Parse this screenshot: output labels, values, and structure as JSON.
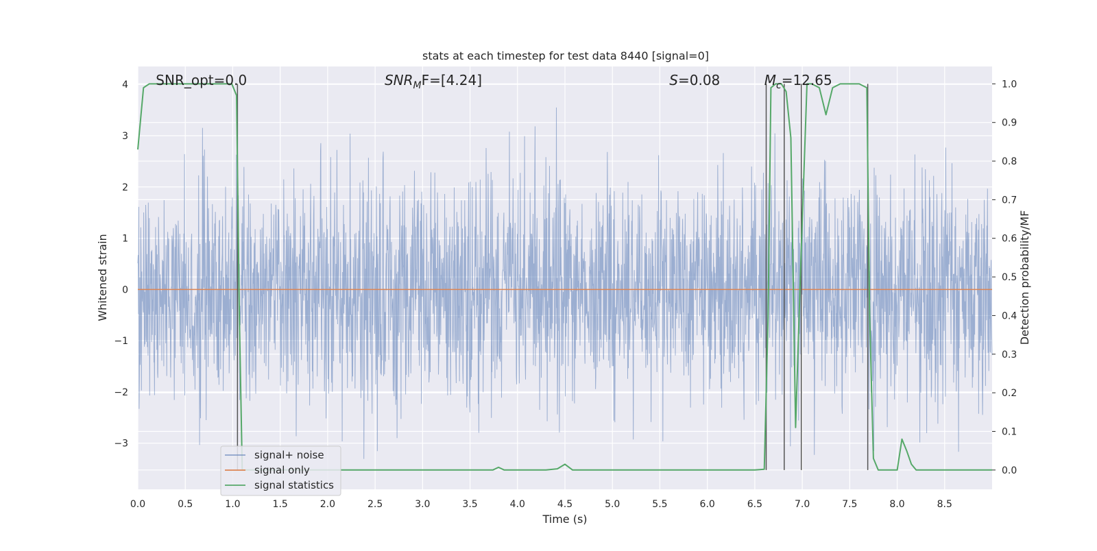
{
  "chart_data": {
    "type": "line",
    "title": "stats at each timestep for test data 8440 [signal=0]",
    "xlabel": "Time (s)",
    "ylabel_left": "Whitened strain",
    "ylabel_right": "Detection probability/MF",
    "xlim": [
      0,
      9.0
    ],
    "ylim_left": [
      -3.9,
      4.35
    ],
    "ylim_right": [
      -0.05,
      1.045
    ],
    "grid": true,
    "legend_position": "lower-left",
    "x_ticks": [
      "0.0",
      "0.5",
      "1.0",
      "1.5",
      "2.0",
      "2.5",
      "3.0",
      "3.5",
      "4.0",
      "4.5",
      "5.0",
      "5.5",
      "6.0",
      "6.5",
      "7.0",
      "7.5",
      "8.0",
      "8.5"
    ],
    "x_tick_values": [
      0,
      0.5,
      1.0,
      1.5,
      2.0,
      2.5,
      3.0,
      3.5,
      4.0,
      4.5,
      5.0,
      5.5,
      6.0,
      6.5,
      7.0,
      7.5,
      8.0,
      8.5
    ],
    "y_left_ticks": [
      "4",
      "3",
      "2",
      "1",
      "0",
      "−1",
      "−2",
      "−3"
    ],
    "y_left_tick_values": [
      4,
      3,
      2,
      1,
      0,
      -1,
      -2,
      -3
    ],
    "y_right_ticks": [
      "1.0",
      "0.9",
      "0.8",
      "0.7",
      "0.6",
      "0.5",
      "0.4",
      "0.3",
      "0.2",
      "0.1",
      "0.0"
    ],
    "y_right_tick_values": [
      1.0,
      0.9,
      0.8,
      0.7,
      0.6,
      0.5,
      0.4,
      0.3,
      0.2,
      0.1,
      0.0
    ],
    "annotations": [
      {
        "prefix": "SNR_opt",
        "sub": "",
        "suffix": "=0.0",
        "italic": false,
        "x": 0.19
      },
      {
        "prefix": "SNR",
        "sub": "M",
        "suffix": "F=[4.24]",
        "italic": true,
        "x": 2.6
      },
      {
        "prefix": "S",
        "sub": "",
        "suffix": "=0.08",
        "italic": true,
        "x": 5.6
      },
      {
        "prefix": "M",
        "sub": "c",
        "suffix": "=12.65",
        "italic": true,
        "x": 6.6
      }
    ],
    "vertical_lines_x": [
      1.05,
      6.62,
      6.81,
      6.99,
      7.69
    ],
    "series": [
      {
        "name": "signal+ noise",
        "color": "#4c72b0",
        "axis": "left",
        "style": "noise band",
        "amplitude_range": [
          -3.6,
          4.0
        ]
      },
      {
        "name": "signal only",
        "color": "#dd8452",
        "axis": "left",
        "x": [
          0,
          9.0
        ],
        "values": [
          0,
          0
        ]
      },
      {
        "name": "signal statistics",
        "color": "#55a868",
        "axis": "right",
        "x": [
          0,
          0.06,
          0.12,
          0.5,
          0.99,
          1.04,
          1.07,
          1.1,
          1.5,
          2.0,
          2.5,
          3.0,
          3.5,
          3.74,
          3.8,
          3.86,
          4.0,
          4.3,
          4.42,
          4.5,
          4.58,
          4.7,
          5.0,
          5.5,
          6.0,
          6.5,
          6.6,
          6.64,
          6.67,
          6.72,
          6.78,
          6.83,
          6.88,
          6.93,
          6.98,
          7.05,
          7.1,
          7.18,
          7.25,
          7.32,
          7.4,
          7.5,
          7.6,
          7.68,
          7.71,
          7.75,
          7.8,
          7.9,
          8.0,
          8.05,
          8.1,
          8.15,
          8.2,
          8.5,
          9.0
        ],
        "values": [
          0.83,
          0.99,
          1.0,
          1.0,
          1.0,
          0.97,
          0.4,
          0.0,
          0.0,
          0.0,
          0.0,
          0.0,
          0.0,
          0.0,
          0.007,
          0.0,
          0.0,
          0.0,
          0.003,
          0.015,
          0.0,
          0.0,
          0.0,
          0.0,
          0.0,
          0.0,
          0.002,
          0.4,
          0.99,
          1.0,
          1.0,
          0.98,
          0.86,
          0.11,
          0.5,
          1.0,
          1.0,
          0.99,
          0.92,
          0.99,
          1.0,
          1.0,
          1.0,
          0.99,
          0.4,
          0.03,
          0.0,
          0.0,
          0.0,
          0.08,
          0.05,
          0.015,
          0.0,
          0.0,
          0.0
        ]
      }
    ]
  }
}
